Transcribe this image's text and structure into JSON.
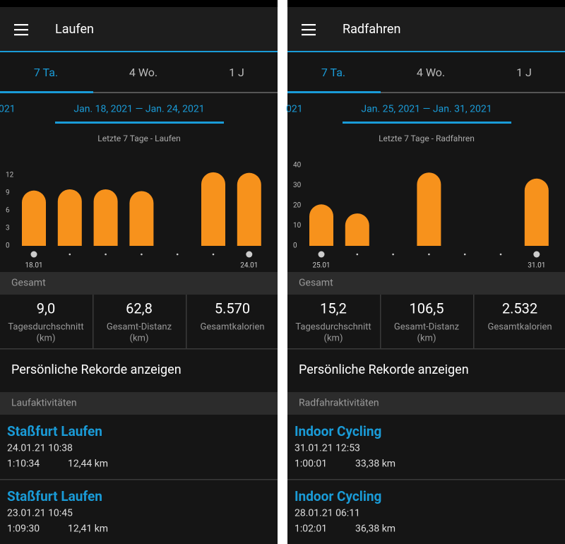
{
  "panels": [
    {
      "title": "Laufen",
      "tabs": [
        "7 Ta.",
        "4 Wo.",
        "1 J"
      ],
      "date_prev": "021",
      "date_range": "Jan. 18, 2021 — Jan. 24, 2021",
      "chart_data": {
        "type": "bar",
        "title": "Letzte 7 Tage - Laufen",
        "categories": [
          "18.01",
          null,
          null,
          null,
          null,
          null,
          "24.01"
        ],
        "values": [
          9.4,
          9.6,
          9.6,
          9.3,
          0,
          12.5,
          12.4
        ],
        "color": "#f7921c",
        "ylim": [
          0,
          12
        ],
        "yticks": [
          0,
          3,
          6,
          9,
          12
        ]
      },
      "summary_title": "Gesamt",
      "stats": [
        {
          "value": "9,0",
          "label": "Tagesdurchschnitt",
          "unit": "(km)"
        },
        {
          "value": "62,8",
          "label": "Gesamt-Distanz",
          "unit": "(km)"
        },
        {
          "value": "5.570",
          "label": "Gesamtkalorien"
        }
      ],
      "records_link": "Persönliche Rekorde anzeigen",
      "activities_title": "Laufaktivitäten",
      "activities": [
        {
          "name": "Staßfurt Laufen",
          "datetime": "24.01.21 10:38",
          "duration": "1:10:34",
          "distance": "12,44 km"
        },
        {
          "name": "Staßfurt Laufen",
          "datetime": "23.01.21 10:45",
          "duration": "1:09:30",
          "distance": "12,41 km"
        }
      ]
    },
    {
      "title": "Radfahren",
      "tabs": [
        "7 Ta.",
        "4 Wo.",
        "1 J"
      ],
      "date_prev": "021",
      "date_range": "Jan. 25, 2021 — Jan. 31, 2021",
      "chart_data": {
        "type": "bar",
        "title": "Letzte 7 Tage - Radfahren",
        "categories": [
          "25.01",
          null,
          null,
          null,
          null,
          null,
          "31.01"
        ],
        "values": [
          20.6,
          16.1,
          0,
          36.4,
          0,
          0,
          33.4
        ],
        "color": "#f7921c",
        "ylim": [
          0,
          40
        ],
        "yticks": [
          0,
          10,
          20,
          30,
          40
        ]
      },
      "summary_title": "Gesamt",
      "stats": [
        {
          "value": "15,2",
          "label": "Tagesdurchschnitt",
          "unit": "(km)"
        },
        {
          "value": "106,5",
          "label": "Gesamt-Distanz",
          "unit": "(km)"
        },
        {
          "value": "2.532",
          "label": "Gesamtkalorien"
        }
      ],
      "records_link": "Persönliche Rekorde anzeigen",
      "activities_title": "Radfahraktivitäten",
      "activities": [
        {
          "name": "Indoor Cycling",
          "datetime": "31.01.21 12:53",
          "duration": "1:00:01",
          "distance": "33,38 km"
        },
        {
          "name": "Indoor Cycling",
          "datetime": "28.01.21 06:11",
          "duration": "1:02:01",
          "distance": "36,38 km"
        }
      ]
    }
  ]
}
